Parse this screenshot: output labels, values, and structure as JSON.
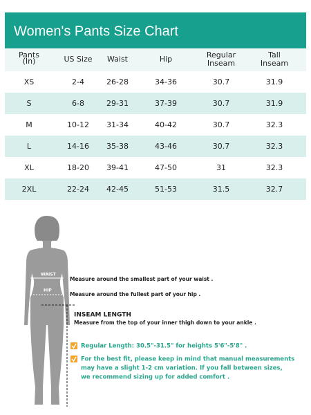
{
  "header": {
    "title": "Women's Pants Size Chart"
  },
  "table": {
    "columns": [
      [
        "Pants",
        "(In)"
      ],
      [
        "US Size"
      ],
      [
        "Waist"
      ],
      [
        "Hip"
      ],
      [
        "Regular",
        "Inseam"
      ],
      [
        "Tall",
        "Inseam"
      ]
    ],
    "rows": [
      [
        "XS",
        "2-4",
        "26-28",
        "34-36",
        "30.7",
        "31.9"
      ],
      [
        "S",
        "6-8",
        "29-31",
        "37-39",
        "30.7",
        "31.9"
      ],
      [
        "M",
        "10-12",
        "31-34",
        "40-42",
        "30.7",
        "32.3"
      ],
      [
        "L",
        "14-16",
        "35-38",
        "43-46",
        "30.7",
        "32.3"
      ],
      [
        "XL",
        "18-20",
        "39-41",
        "47-50",
        "31",
        "32.3"
      ],
      [
        "2XL",
        "22-24",
        "42-45",
        "51-53",
        "31.5",
        "32.7"
      ]
    ]
  },
  "figure": {
    "waist_label": "WAIST",
    "hip_label": "HIP",
    "waist_text": "Measure around the smallest part of your waist .",
    "hip_text": "Measure around the fullest part of your hip .",
    "inseam_title": "INSEAM LENGTH",
    "inseam_text": "Measure from the top of your inner thigh down to your ankle .",
    "notes": [
      [
        "Regular Length: 30.5\"-31.5\" for heights 5'6\"-5'8\" ."
      ],
      [
        "For the best fit, please keep in mind that manual measurements",
        "may have a slight 1-2 cm variation. If you fall between sizes,",
        "we recommend sizing up for added comfort ."
      ]
    ]
  }
}
